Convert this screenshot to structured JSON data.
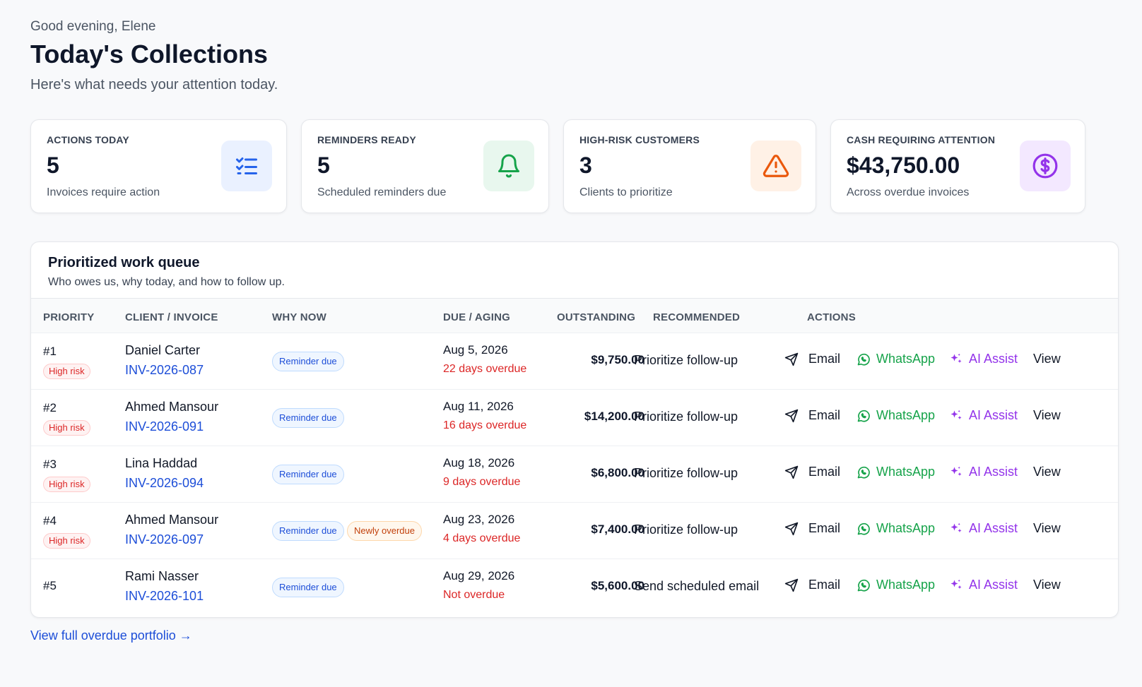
{
  "header": {
    "greeting": "Good evening, Elene",
    "title": "Today's Collections",
    "subtitle": "Here's what needs your attention today."
  },
  "stats": [
    {
      "label": "ACTIONS TODAY",
      "value": "5",
      "desc": "Invoices require action",
      "icon": "checklist-icon",
      "icon_color": "#2563eb",
      "icon_bg": "#eaf1ff"
    },
    {
      "label": "REMINDERS READY",
      "value": "5",
      "desc": "Scheduled reminders due",
      "icon": "bell-icon",
      "icon_color": "#16a34a",
      "icon_bg": "#e8f7ee"
    },
    {
      "label": "HIGH-RISK CUSTOMERS",
      "value": "3",
      "desc": "Clients to prioritize",
      "icon": "warning-icon",
      "icon_color": "#ea580c",
      "icon_bg": "#fff1e6"
    },
    {
      "label": "CASH REQUIRING ATTENTION",
      "value": "$43,750.00",
      "desc": "Across overdue invoices",
      "icon": "dollar-circle-icon",
      "icon_color": "#9333ea",
      "icon_bg": "#f3e8ff"
    }
  ],
  "queue": {
    "title": "Prioritized work queue",
    "subtitle": "Who owes us, why today, and how to follow up.",
    "columns": [
      "PRIORITY",
      "CLIENT / INVOICE",
      "WHY NOW",
      "DUE / AGING",
      "OUTSTANDING",
      "RECOMMENDED",
      "ACTIONS"
    ],
    "actions": {
      "email": "Email",
      "whatsapp": "WhatsApp",
      "ai": "AI Assist",
      "view": "View"
    },
    "rows": [
      {
        "priority": "#1",
        "risk": "High risk",
        "client": "Daniel Carter",
        "invoice": "INV-2026-087",
        "tags": [
          "Reminder due"
        ],
        "due": "Aug 5, 2026",
        "aging": "22 days overdue",
        "outstanding": "$9,750.00",
        "recommended": "Prioritize follow-up"
      },
      {
        "priority": "#2",
        "risk": "High risk",
        "client": "Ahmed Mansour",
        "invoice": "INV-2026-091",
        "tags": [
          "Reminder due"
        ],
        "due": "Aug 11, 2026",
        "aging": "16 days overdue",
        "outstanding": "$14,200.00",
        "recommended": "Prioritize follow-up"
      },
      {
        "priority": "#3",
        "risk": "High risk",
        "client": "Lina Haddad",
        "invoice": "INV-2026-094",
        "tags": [
          "Reminder due"
        ],
        "due": "Aug 18, 2026",
        "aging": "9 days overdue",
        "outstanding": "$6,800.00",
        "recommended": "Prioritize follow-up"
      },
      {
        "priority": "#4",
        "risk": "High risk",
        "client": "Ahmed Mansour",
        "invoice": "INV-2026-097",
        "tags": [
          "Reminder due",
          "Newly overdue"
        ],
        "due": "Aug 23, 2026",
        "aging": "4 days overdue",
        "outstanding": "$7,400.00",
        "recommended": "Prioritize follow-up"
      },
      {
        "priority": "#5",
        "risk": "",
        "client": "Rami Nasser",
        "invoice": "INV-2026-101",
        "tags": [
          "Reminder due"
        ],
        "due": "Aug 29, 2026",
        "aging": "Not overdue",
        "outstanding": "$5,600.00",
        "recommended": "Send scheduled email"
      }
    ]
  },
  "footer": {
    "link": "View full overdue portfolio →"
  }
}
